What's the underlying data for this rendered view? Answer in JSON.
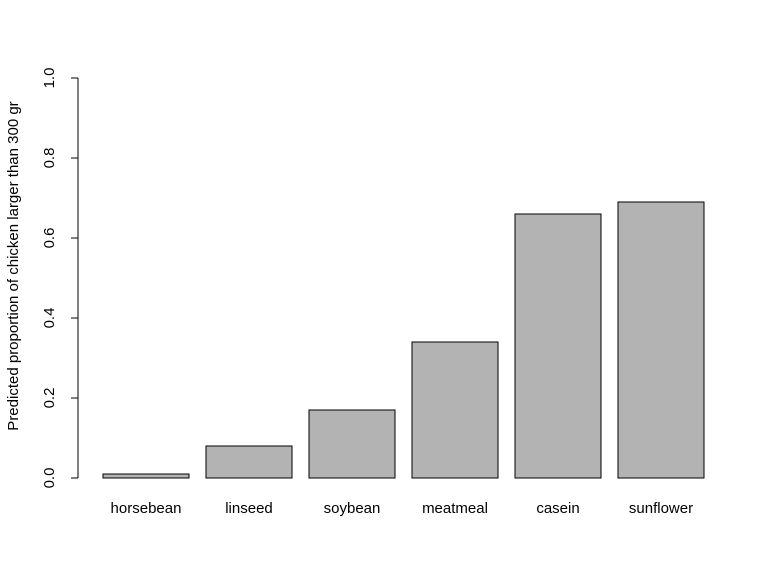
{
  "chart_data": {
    "type": "bar",
    "categories": [
      "horsebean",
      "linseed",
      "soybean",
      "meatmeal",
      "casein",
      "sunflower"
    ],
    "values": [
      0.01,
      0.08,
      0.17,
      0.34,
      0.66,
      0.69
    ],
    "title": "",
    "xlabel": "",
    "ylabel": "Predicted proportion of chicken larger than 300 gr",
    "ylim": [
      0,
      1
    ],
    "yticks": [
      "0.0",
      "0.2",
      "0.4",
      "0.6",
      "0.8",
      "1.0"
    ],
    "grid": false,
    "bar_color": "#b3b3b3",
    "bar_border_color": "#000000"
  }
}
